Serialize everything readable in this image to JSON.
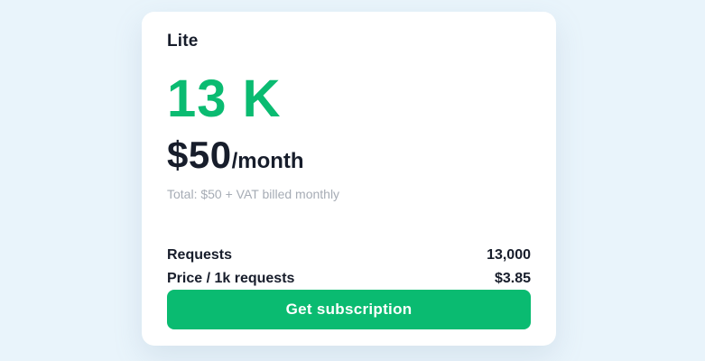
{
  "colors": {
    "accent_green": "#0abb71",
    "text_dark": "#171d2b",
    "muted_gray": "#a6acb5",
    "page_background": "#e9f4fb",
    "card_background": "#ffffff"
  },
  "card": {
    "plan_name": "Lite",
    "quota": "13 K",
    "price_amount": "$50",
    "price_period": "/month",
    "total_note": "Total: $50 + VAT billed monthly",
    "rows": [
      {
        "label": "Requests",
        "value": "13,000"
      },
      {
        "label": "Price / 1k requests",
        "value": "$3.85"
      }
    ],
    "cta_label": "Get subscription"
  }
}
